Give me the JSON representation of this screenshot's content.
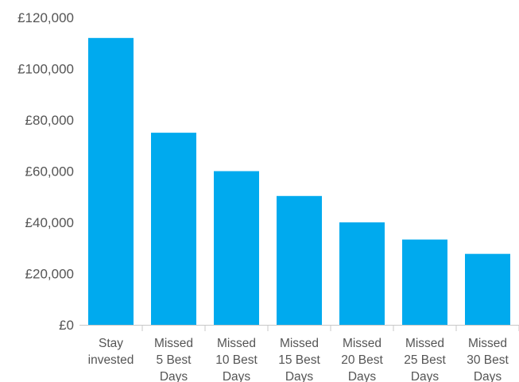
{
  "chart_data": {
    "type": "bar",
    "categories": [
      [
        "Stay",
        "invested"
      ],
      [
        "Missed",
        "5 Best",
        "Days"
      ],
      [
        "Missed",
        "10 Best",
        "Days"
      ],
      [
        "Missed",
        "15 Best",
        "Days"
      ],
      [
        "Missed",
        "20 Best",
        "Days"
      ],
      [
        "Missed",
        "25 Best",
        "Days"
      ],
      [
        "Missed",
        "30 Best",
        "Days"
      ]
    ],
    "values": [
      112000,
      75000,
      60000,
      50300,
      40000,
      33300,
      27700
    ],
    "ylim": [
      0,
      120000
    ],
    "yticks": [
      0,
      20000,
      40000,
      60000,
      80000,
      100000,
      120000
    ],
    "ytick_labels": [
      "£0",
      "£20,000",
      "£40,000",
      "£60,000",
      "£80,000",
      "£100,000",
      "£120,000"
    ],
    "bar_color": "#00aaee",
    "axis_color": "#c8c8c8",
    "text_color": "#555555",
    "title": "",
    "xlabel": "",
    "ylabel": "",
    "grid": false,
    "legend": false
  }
}
